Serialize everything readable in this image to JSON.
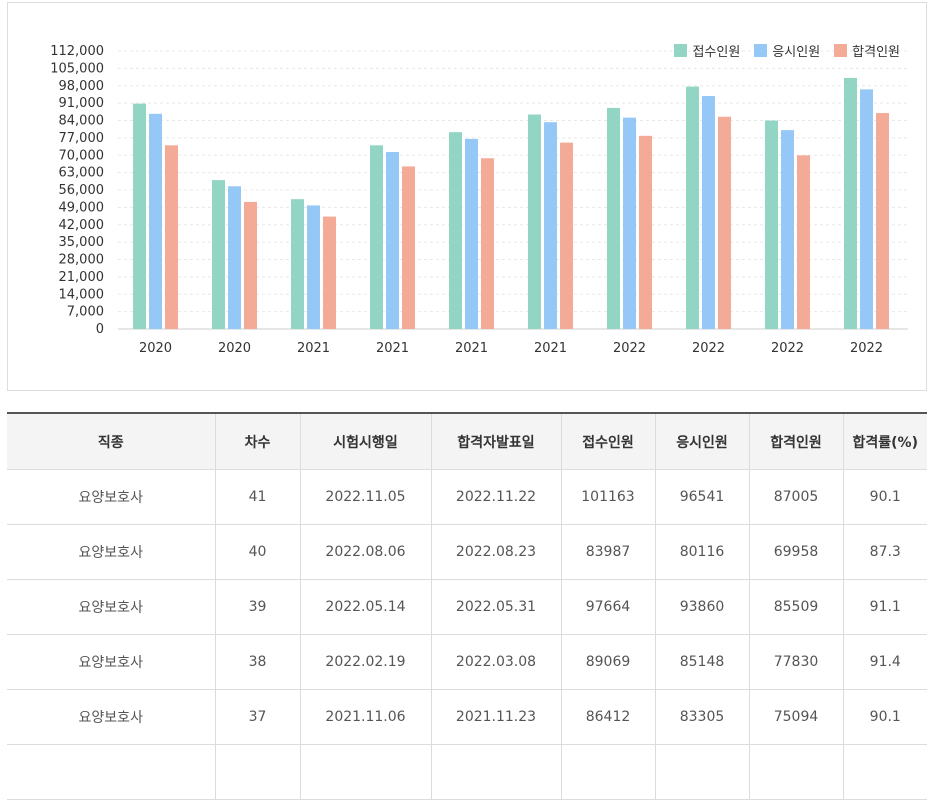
{
  "colors": {
    "applicants": "#93d5c5",
    "examinees": "#95c8f7",
    "passers": "#f3ab98"
  },
  "chart_data": {
    "type": "bar",
    "title": "",
    "xlabel": "",
    "ylabel": "",
    "ylim": [
      0,
      112000
    ],
    "yticks": [
      0,
      7000,
      14000,
      21000,
      28000,
      35000,
      42000,
      49000,
      56000,
      63000,
      70000,
      77000,
      84000,
      91000,
      98000,
      105000,
      112000
    ],
    "ytick_labels": [
      "0",
      "7,000",
      "14,000",
      "21,000",
      "28,000",
      "35,000",
      "42,000",
      "49,000",
      "56,000",
      "63,000",
      "70,000",
      "77,000",
      "84,000",
      "91,000",
      "98,000",
      "105,000",
      "112,000"
    ],
    "categories": [
      "2020",
      "2020",
      "2021",
      "2021",
      "2021",
      "2021",
      "2022",
      "2022",
      "2022",
      "2022"
    ],
    "legend_position": "top-right",
    "series": [
      {
        "name": "접수인원",
        "color": "#93d5c5",
        "values": [
          90800,
          60000,
          52300,
          74000,
          79300,
          86412,
          89069,
          97664,
          83987,
          101163
        ]
      },
      {
        "name": "응시인원",
        "color": "#95c8f7",
        "values": [
          86700,
          57500,
          49800,
          71300,
          76600,
          83305,
          85148,
          93860,
          80116,
          96541
        ]
      },
      {
        "name": "합격인원",
        "color": "#f3ab98",
        "values": [
          74000,
          51200,
          45300,
          65500,
          68800,
          75094,
          77830,
          85509,
          69958,
          87005
        ]
      }
    ]
  },
  "table": {
    "headers": [
      "직종",
      "차수",
      "시험시행일",
      "합격자발표일",
      "접수인원",
      "응시인원",
      "합격인원",
      "합격률(%)"
    ],
    "rows": [
      [
        "요양보호사",
        "41",
        "2022.11.05",
        "2022.11.22",
        "101163",
        "96541",
        "87005",
        "90.1"
      ],
      [
        "요양보호사",
        "40",
        "2022.08.06",
        "2022.08.23",
        "83987",
        "80116",
        "69958",
        "87.3"
      ],
      [
        "요양보호사",
        "39",
        "2022.05.14",
        "2022.05.31",
        "97664",
        "93860",
        "85509",
        "91.1"
      ],
      [
        "요양보호사",
        "38",
        "2022.02.19",
        "2022.03.08",
        "89069",
        "85148",
        "77830",
        "91.4"
      ],
      [
        "요양보호사",
        "37",
        "2021.11.06",
        "2021.11.23",
        "86412",
        "83305",
        "75094",
        "90.1"
      ],
      [
        "",
        "",
        "",
        "",
        "",
        "",
        "",
        ""
      ]
    ]
  }
}
